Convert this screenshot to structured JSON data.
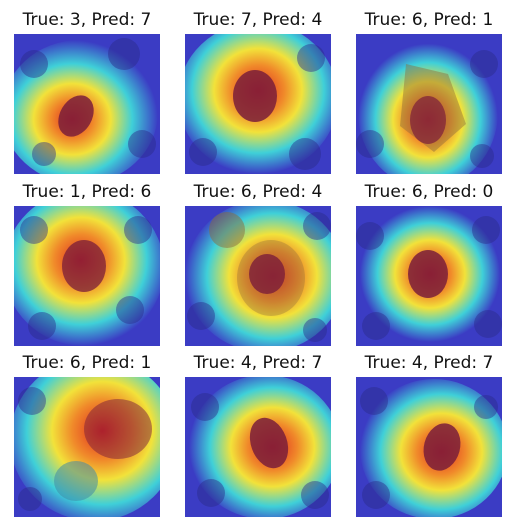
{
  "grid": {
    "panels": [
      {
        "title": "True: 3, Pred: 7",
        "true_label": 3,
        "pred_label": 7
      },
      {
        "title": "True: 7, Pred: 4",
        "true_label": 7,
        "pred_label": 4
      },
      {
        "title": "True: 6, Pred: 1",
        "true_label": 6,
        "pred_label": 1
      },
      {
        "title": "True: 1, Pred: 6",
        "true_label": 1,
        "pred_label": 6
      },
      {
        "title": "True: 6, Pred: 4",
        "true_label": 6,
        "pred_label": 4
      },
      {
        "title": "True: 6, Pred: 0",
        "true_label": 6,
        "pred_label": 0
      },
      {
        "title": "True: 6, Pred: 1",
        "true_label": 6,
        "pred_label": 1
      },
      {
        "title": "True: 4, Pred: 7",
        "true_label": 4,
        "pred_label": 7
      },
      {
        "title": "True: 4, Pred: 7",
        "true_label": 4,
        "pred_label": 7
      }
    ]
  },
  "colors": {
    "background": "#ffffff",
    "heat_low": "#3b3cc4",
    "heat_mid": "#3fd0d8",
    "heat_warm": "#f2e23a",
    "heat_high": "#e0251f",
    "nucleus": "#7a1e3a"
  }
}
